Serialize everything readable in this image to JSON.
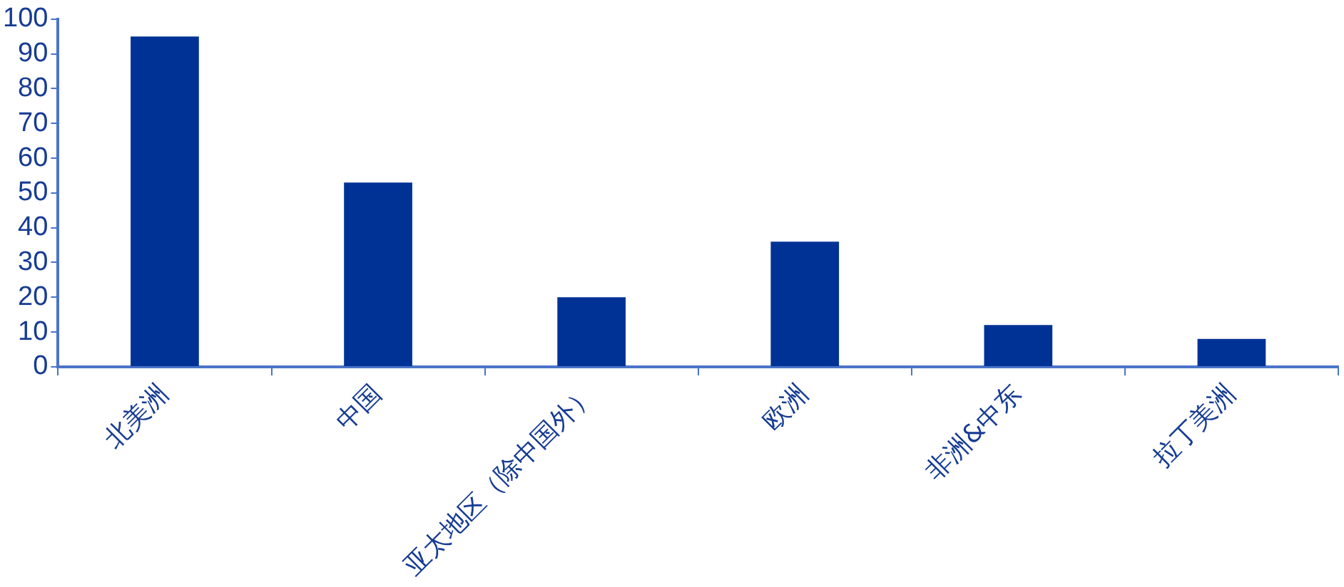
{
  "chart_data": {
    "type": "bar",
    "categories": [
      "北美洲",
      "中国",
      "亚太地区（除中国外）",
      "欧洲",
      "非洲&中东",
      "拉丁美洲"
    ],
    "values": [
      95,
      53,
      20,
      36,
      12,
      8
    ],
    "color": "#003296",
    "ylim": [
      0,
      100
    ],
    "yticks": [
      0,
      10,
      20,
      30,
      40,
      50,
      60,
      70,
      80,
      90,
      100
    ],
    "grid": false,
    "legend": false
  }
}
